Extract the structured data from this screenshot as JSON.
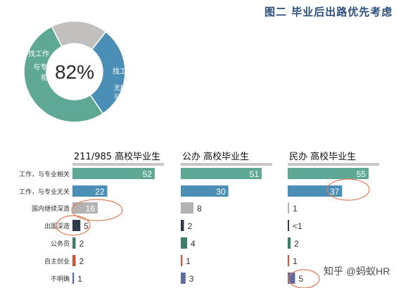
{
  "figure_title": "图二 毕业后出路优先考虑",
  "watermark": "知乎 @蚂蚁HR",
  "colors": {
    "green": "#5fa895",
    "blue": "#4b8fb7",
    "gray": "#b4b2b2",
    "navy": "#2e3b4c",
    "dark_teal": "#3f7c6c",
    "red": "#c8553b",
    "purple": "#5f6ba1",
    "circle": "#e07a52",
    "title": "#2b4f7a"
  },
  "chart_data": [
    {
      "type": "pie",
      "center_label": "82%",
      "slices": [
        {
          "label": "找工作，与专业相关",
          "value": 52,
          "color": "#5fa895"
        },
        {
          "label": "找工作，无所谓与专业相关",
          "value": 30,
          "color": "#4b8fb7"
        },
        {
          "label": "",
          "value": 18,
          "color": "#c2c0bf"
        }
      ]
    },
    {
      "type": "bar",
      "orientation": "horizontal",
      "categories": [
        "工作，与专业相关",
        "工作，与专业无关",
        "国内继续深造",
        "出国深造",
        "公务员",
        "自主创业",
        "不明确"
      ],
      "panels": [
        {
          "title": "211/985 高校毕业生",
          "values": [
            52,
            22,
            16,
            5,
            2,
            2,
            1
          ],
          "labels": [
            "52",
            "22",
            "16",
            "5",
            "2",
            "2",
            "1"
          ],
          "highlight": [
            2,
            3
          ]
        },
        {
          "title": "公办 高校毕业生",
          "values": [
            51,
            30,
            8,
            2,
            4,
            1,
            3
          ],
          "labels": [
            "51",
            "30",
            "8",
            "2",
            "4",
            "1",
            "3"
          ],
          "highlight": []
        },
        {
          "title": "民办 高校毕业生",
          "values": [
            55,
            37,
            1,
            0.5,
            2,
            1,
            5
          ],
          "labels": [
            "55",
            "37",
            "1",
            "<1",
            "2",
            "1",
            "5"
          ],
          "highlight": [
            1,
            6
          ]
        }
      ],
      "bar_colors": [
        "#5fa895",
        "#4b8fb7",
        "#b4b2b2",
        "#2e3b4c",
        "#3f7c6c",
        "#c8553b",
        "#5f6ba1"
      ]
    }
  ]
}
